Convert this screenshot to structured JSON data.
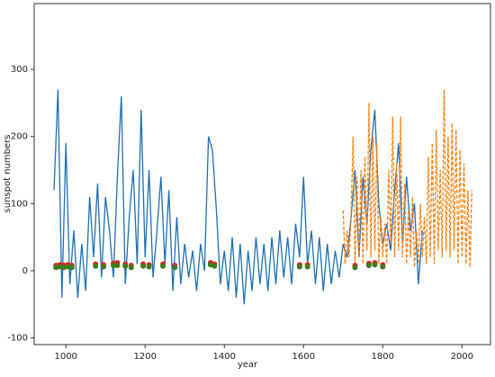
{
  "chart_data": {
    "type": "line",
    "xlabel": "year",
    "ylabel": "sunspot numbers",
    "xlim": [
      920,
      2072
    ],
    "xticks": [
      1000,
      1200,
      1400,
      1600,
      1800,
      2000
    ],
    "ylim": [
      -110,
      398
    ],
    "yticks": [
      -100,
      0,
      100,
      200,
      300
    ],
    "grid": false,
    "series": [
      {
        "color": "#1f6fb4",
        "style": "solid",
        "x": [
          970,
          980,
          990,
          1000,
          1010,
          1020,
          1030,
          1040,
          1050,
          1060,
          1070,
          1080,
          1090,
          1100,
          1110,
          1120,
          1130,
          1140,
          1150,
          1160,
          1170,
          1180,
          1190,
          1200,
          1210,
          1220,
          1230,
          1240,
          1250,
          1260,
          1270,
          1280,
          1290,
          1300,
          1310,
          1320,
          1330,
          1340,
          1350,
          1360,
          1370,
          1380,
          1390,
          1400,
          1410,
          1420,
          1430,
          1440,
          1450,
          1460,
          1470,
          1480,
          1490,
          1500,
          1510,
          1520,
          1530,
          1540,
          1550,
          1560,
          1570,
          1580,
          1590,
          1600,
          1610,
          1620,
          1630,
          1640,
          1650,
          1660,
          1670,
          1680,
          1690,
          1700,
          1710,
          1720,
          1730,
          1740,
          1750,
          1760,
          1770,
          1780,
          1790,
          1800,
          1810,
          1820,
          1830,
          1840,
          1850,
          1860,
          1870,
          1880,
          1890,
          1900
        ],
        "values": [
          120,
          270,
          -40,
          190,
          -20,
          60,
          -40,
          40,
          -30,
          110,
          20,
          130,
          -10,
          110,
          60,
          -10,
          140,
          260,
          -20,
          80,
          150,
          10,
          240,
          20,
          150,
          -10,
          60,
          140,
          10,
          120,
          -30,
          80,
          -20,
          40,
          -10,
          30,
          -30,
          40,
          0,
          200,
          180,
          90,
          -20,
          30,
          -30,
          50,
          -40,
          40,
          -50,
          30,
          -30,
          50,
          -20,
          40,
          -30,
          50,
          -20,
          60,
          -10,
          50,
          -20,
          70,
          20,
          140,
          10,
          60,
          -20,
          50,
          -30,
          40,
          -20,
          30,
          -10,
          40,
          20,
          80,
          150,
          20,
          140,
          70,
          180,
          240,
          100,
          40,
          70,
          30,
          120,
          190,
          40,
          140,
          60,
          100,
          -20,
          60
        ]
      },
      {
        "color": "#ff7f0e",
        "style": "dashed",
        "x": [
          1700,
          1705,
          1710,
          1715,
          1720,
          1725,
          1730,
          1735,
          1740,
          1745,
          1750,
          1755,
          1760,
          1765,
          1770,
          1775,
          1780,
          1785,
          1790,
          1795,
          1800,
          1805,
          1810,
          1815,
          1820,
          1825,
          1830,
          1835,
          1840,
          1845,
          1850,
          1855,
          1860,
          1865,
          1870,
          1875,
          1880,
          1885,
          1890,
          1895,
          1900,
          1905,
          1910,
          1915,
          1920,
          1925,
          1930,
          1935,
          1940,
          1945,
          1950,
          1955,
          1960,
          1965,
          1970,
          1975,
          1980,
          1985,
          1990,
          1995,
          2000,
          2005,
          2010,
          2015,
          2020,
          2025
        ],
        "values": [
          90,
          10,
          60,
          20,
          80,
          200,
          10,
          140,
          20,
          150,
          10,
          170,
          30,
          250,
          20,
          200,
          30,
          190,
          10,
          80,
          20,
          70,
          10,
          150,
          40,
          230,
          20,
          160,
          30,
          230,
          20,
          130,
          10,
          90,
          20,
          110,
          5,
          60,
          10,
          100,
          20,
          80,
          10,
          170,
          20,
          190,
          10,
          210,
          30,
          150,
          20,
          270,
          30,
          200,
          20,
          220,
          30,
          210,
          10,
          180,
          20,
          160,
          10,
          120,
          5,
          120
        ]
      },
      {
        "color": "#e0271f",
        "style": "dots",
        "x": [
          975,
          985,
          995,
          1005,
          1015,
          1075,
          1095,
          1120,
          1130,
          1150,
          1165,
          1195,
          1210,
          1245,
          1275,
          1365,
          1375,
          1590,
          1610,
          1730,
          1765,
          1780,
          1800
        ],
        "values": [
          8,
          9,
          8,
          9,
          8,
          10,
          9,
          11,
          12,
          10,
          8,
          10,
          9,
          10,
          8,
          12,
          10,
          9,
          9,
          8,
          11,
          12,
          9
        ]
      },
      {
        "color": "#3a7d1e",
        "style": "dots",
        "x": [
          975,
          985,
          995,
          1005,
          1015,
          1075,
          1095,
          1120,
          1130,
          1150,
          1165,
          1195,
          1210,
          1245,
          1275,
          1365,
          1375,
          1590,
          1610,
          1730,
          1765,
          1780,
          1800
        ],
        "values": [
          5,
          6,
          5,
          6,
          5,
          7,
          6,
          8,
          8,
          7,
          5,
          7,
          6,
          7,
          5,
          9,
          7,
          6,
          6,
          5,
          8,
          9,
          6
        ]
      }
    ]
  }
}
